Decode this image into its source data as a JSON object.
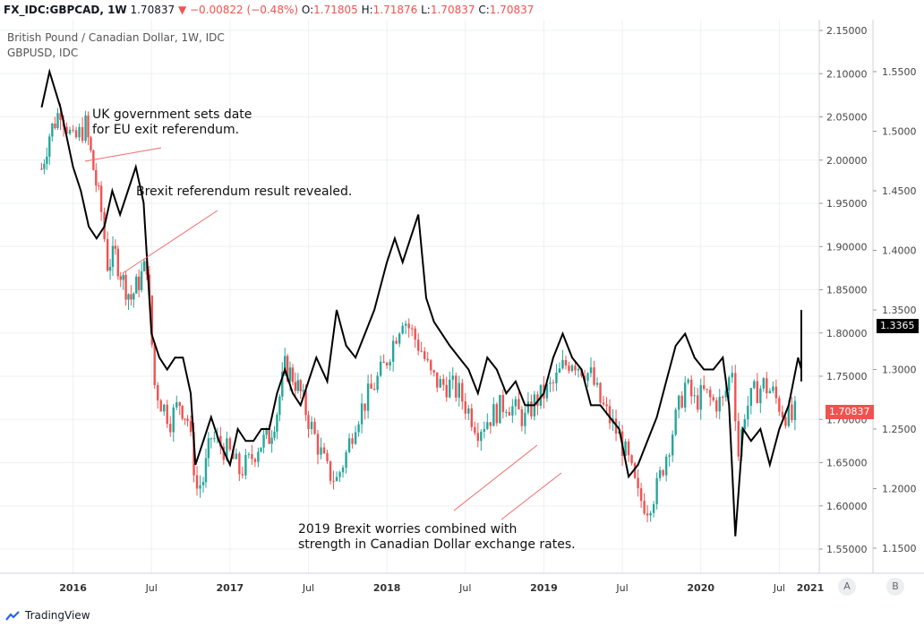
{
  "header": {
    "symbol": "FX_IDC:GBPCAD, 1W",
    "last": "1.70837",
    "change": "−0.00822 (−0.48%)",
    "o_label": "O:",
    "o_value": "1.71805",
    "h_label": "H:",
    "h_value": "1.71876",
    "l_label": "L:",
    "l_value": "1.70837",
    "c_label": "C:",
    "c_value": "1.70837"
  },
  "legend": {
    "main": "British Pound / Canadian Dollar, 1W, IDC",
    "overlay": "GBPUSD, IDC"
  },
  "annotations": {
    "a1_line1": "UK government sets date",
    "a1_line2": "for EU exit referendum.",
    "a2": "Brexit referendum result revealed.",
    "a3_line1": "2019 Brexit worries combined with",
    "a3_line2": "strength in Canadian Dollar exchange rates."
  },
  "price_tags": {
    "gbpusd": "1.3365",
    "gbpcad": "1.70837"
  },
  "axis_buttons": {
    "a": "A",
    "b": "B"
  },
  "footer": {
    "brand": "TradingView"
  },
  "colors": {
    "up": "#26a69a",
    "down": "#ef5350",
    "overlay": "#000000",
    "grid": "#eef0f3"
  },
  "chart_data": {
    "type": "candlestick-with-line-overlay",
    "x_ticks": [
      "2016",
      "Jul",
      "2017",
      "Jul",
      "2018",
      "Jul",
      "2019",
      "Jul",
      "2020",
      "Jul",
      "2021"
    ],
    "y_left_ticks": [],
    "y_right1_ticks": [
      "2.15000",
      "2.10000",
      "2.05000",
      "2.00000",
      "1.95000",
      "1.90000",
      "1.85000",
      "1.80000",
      "1.75000",
      "1.70000",
      "1.65000",
      "1.60000",
      "1.55000"
    ],
    "y_right2_ticks": [
      "1.5500",
      "1.5000",
      "1.4500",
      "1.4000",
      "1.3500",
      "1.3000",
      "1.2500",
      "1.2000",
      "1.1500"
    ],
    "gbpcad_range": [
      1.53,
      2.16
    ],
    "gbpusd_range": [
      1.11,
      1.58
    ],
    "series": [
      {
        "name": "GBPCAD",
        "style": "candles",
        "points": [
          [
            2015.8,
            1.99
          ],
          [
            2015.85,
            2.03
          ],
          [
            2015.92,
            2.06
          ],
          [
            2016.0,
            2.02
          ],
          [
            2016.08,
            2.04
          ],
          [
            2016.13,
            1.99
          ],
          [
            2016.18,
            1.94
          ],
          [
            2016.22,
            1.88
          ],
          [
            2016.27,
            1.89
          ],
          [
            2016.32,
            1.86
          ],
          [
            2016.37,
            1.84
          ],
          [
            2016.42,
            1.86
          ],
          [
            2016.47,
            1.88
          ],
          [
            2016.52,
            1.74
          ],
          [
            2016.56,
            1.72
          ],
          [
            2016.62,
            1.7
          ],
          [
            2016.68,
            1.72
          ],
          [
            2016.73,
            1.7
          ],
          [
            2016.79,
            1.62
          ],
          [
            2016.83,
            1.63
          ],
          [
            2016.88,
            1.68
          ],
          [
            2016.94,
            1.67
          ],
          [
            2017.0,
            1.66
          ],
          [
            2017.06,
            1.64
          ],
          [
            2017.12,
            1.65
          ],
          [
            2017.18,
            1.67
          ],
          [
            2017.25,
            1.68
          ],
          [
            2017.3,
            1.71
          ],
          [
            2017.35,
            1.76
          ],
          [
            2017.4,
            1.75
          ],
          [
            2017.45,
            1.73
          ],
          [
            2017.5,
            1.7
          ],
          [
            2017.56,
            1.67
          ],
          [
            2017.62,
            1.64
          ],
          [
            2017.68,
            1.63
          ],
          [
            2017.74,
            1.66
          ],
          [
            2017.8,
            1.7
          ],
          [
            2017.86,
            1.72
          ],
          [
            2017.92,
            1.74
          ],
          [
            2017.98,
            1.76
          ],
          [
            2018.04,
            1.79
          ],
          [
            2018.1,
            1.82
          ],
          [
            2018.16,
            1.8
          ],
          [
            2018.22,
            1.78
          ],
          [
            2018.28,
            1.75
          ],
          [
            2018.34,
            1.74
          ],
          [
            2018.4,
            1.74
          ],
          [
            2018.46,
            1.73
          ],
          [
            2018.52,
            1.71
          ],
          [
            2018.58,
            1.69
          ],
          [
            2018.64,
            1.7
          ],
          [
            2018.7,
            1.71
          ],
          [
            2018.76,
            1.72
          ],
          [
            2018.82,
            1.71
          ],
          [
            2018.88,
            1.7
          ],
          [
            2018.94,
            1.72
          ],
          [
            2019.0,
            1.73
          ],
          [
            2019.06,
            1.74
          ],
          [
            2019.12,
            1.76
          ],
          [
            2019.18,
            1.77
          ],
          [
            2019.24,
            1.76
          ],
          [
            2019.3,
            1.75
          ],
          [
            2019.36,
            1.72
          ],
          [
            2019.42,
            1.7
          ],
          [
            2019.48,
            1.68
          ],
          [
            2019.54,
            1.65
          ],
          [
            2019.6,
            1.61
          ],
          [
            2019.66,
            1.6
          ],
          [
            2019.72,
            1.62
          ],
          [
            2019.78,
            1.66
          ],
          [
            2019.84,
            1.7
          ],
          [
            2019.9,
            1.74
          ],
          [
            2019.96,
            1.72
          ],
          [
            2020.02,
            1.73
          ],
          [
            2020.08,
            1.72
          ],
          [
            2020.14,
            1.72
          ],
          [
            2020.2,
            1.76
          ],
          [
            2020.24,
            1.66
          ],
          [
            2020.28,
            1.71
          ],
          [
            2020.34,
            1.73
          ],
          [
            2020.4,
            1.74
          ],
          [
            2020.46,
            1.73
          ],
          [
            2020.52,
            1.71
          ],
          [
            2020.58,
            1.7
          ],
          [
            2020.64,
            1.72
          ],
          [
            2020.7,
            1.75
          ],
          [
            2020.76,
            1.73
          ],
          [
            2020.82,
            1.71
          ],
          [
            2020.86,
            1.73
          ],
          [
            2020.9,
            1.72
          ],
          [
            2020.94,
            1.71
          ]
        ]
      },
      {
        "name": "GBPUSD",
        "style": "line",
        "points": [
          [
            2015.8,
            1.52
          ],
          [
            2015.85,
            1.55
          ],
          [
            2015.92,
            1.52
          ],
          [
            2016.0,
            1.47
          ],
          [
            2016.05,
            1.45
          ],
          [
            2016.1,
            1.42
          ],
          [
            2016.15,
            1.41
          ],
          [
            2016.2,
            1.42
          ],
          [
            2016.25,
            1.45
          ],
          [
            2016.3,
            1.43
          ],
          [
            2016.35,
            1.45
          ],
          [
            2016.4,
            1.47
          ],
          [
            2016.45,
            1.44
          ],
          [
            2016.5,
            1.33
          ],
          [
            2016.55,
            1.31
          ],
          [
            2016.6,
            1.3
          ],
          [
            2016.65,
            1.31
          ],
          [
            2016.7,
            1.31
          ],
          [
            2016.75,
            1.28
          ],
          [
            2016.78,
            1.22
          ],
          [
            2016.83,
            1.24
          ],
          [
            2016.88,
            1.26
          ],
          [
            2016.93,
            1.24
          ],
          [
            2017.0,
            1.22
          ],
          [
            2017.05,
            1.25
          ],
          [
            2017.1,
            1.24
          ],
          [
            2017.15,
            1.24
          ],
          [
            2017.2,
            1.25
          ],
          [
            2017.25,
            1.25
          ],
          [
            2017.3,
            1.28
          ],
          [
            2017.35,
            1.3
          ],
          [
            2017.4,
            1.28
          ],
          [
            2017.45,
            1.27
          ],
          [
            2017.5,
            1.29
          ],
          [
            2017.55,
            1.31
          ],
          [
            2017.62,
            1.29
          ],
          [
            2017.68,
            1.35
          ],
          [
            2017.74,
            1.32
          ],
          [
            2017.8,
            1.31
          ],
          [
            2017.86,
            1.33
          ],
          [
            2017.92,
            1.35
          ],
          [
            2018.0,
            1.39
          ],
          [
            2018.05,
            1.41
          ],
          [
            2018.1,
            1.39
          ],
          [
            2018.15,
            1.41
          ],
          [
            2018.2,
            1.43
          ],
          [
            2018.25,
            1.36
          ],
          [
            2018.3,
            1.34
          ],
          [
            2018.35,
            1.33
          ],
          [
            2018.4,
            1.32
          ],
          [
            2018.46,
            1.31
          ],
          [
            2018.52,
            1.3
          ],
          [
            2018.58,
            1.28
          ],
          [
            2018.64,
            1.31
          ],
          [
            2018.7,
            1.3
          ],
          [
            2018.76,
            1.28
          ],
          [
            2018.82,
            1.29
          ],
          [
            2018.88,
            1.27
          ],
          [
            2018.94,
            1.27
          ],
          [
            2019.0,
            1.28
          ],
          [
            2019.06,
            1.31
          ],
          [
            2019.12,
            1.33
          ],
          [
            2019.18,
            1.31
          ],
          [
            2019.24,
            1.3
          ],
          [
            2019.3,
            1.27
          ],
          [
            2019.36,
            1.27
          ],
          [
            2019.42,
            1.26
          ],
          [
            2019.48,
            1.25
          ],
          [
            2019.54,
            1.21
          ],
          [
            2019.6,
            1.22
          ],
          [
            2019.66,
            1.24
          ],
          [
            2019.72,
            1.26
          ],
          [
            2019.78,
            1.29
          ],
          [
            2019.84,
            1.32
          ],
          [
            2019.9,
            1.33
          ],
          [
            2019.96,
            1.31
          ],
          [
            2020.02,
            1.3
          ],
          [
            2020.08,
            1.3
          ],
          [
            2020.14,
            1.31
          ],
          [
            2020.18,
            1.27
          ],
          [
            2020.22,
            1.16
          ],
          [
            2020.27,
            1.25
          ],
          [
            2020.32,
            1.24
          ],
          [
            2020.38,
            1.25
          ],
          [
            2020.44,
            1.22
          ],
          [
            2020.5,
            1.25
          ],
          [
            2020.56,
            1.27
          ],
          [
            2020.62,
            1.31
          ],
          [
            2020.68,
            1.3
          ],
          [
            2020.74,
            1.29
          ],
          [
            2020.8,
            1.31
          ],
          [
            2020.86,
            1.32
          ],
          [
            2020.92,
            1.35
          ],
          [
            2020.96,
            1.34
          ]
        ]
      }
    ]
  }
}
